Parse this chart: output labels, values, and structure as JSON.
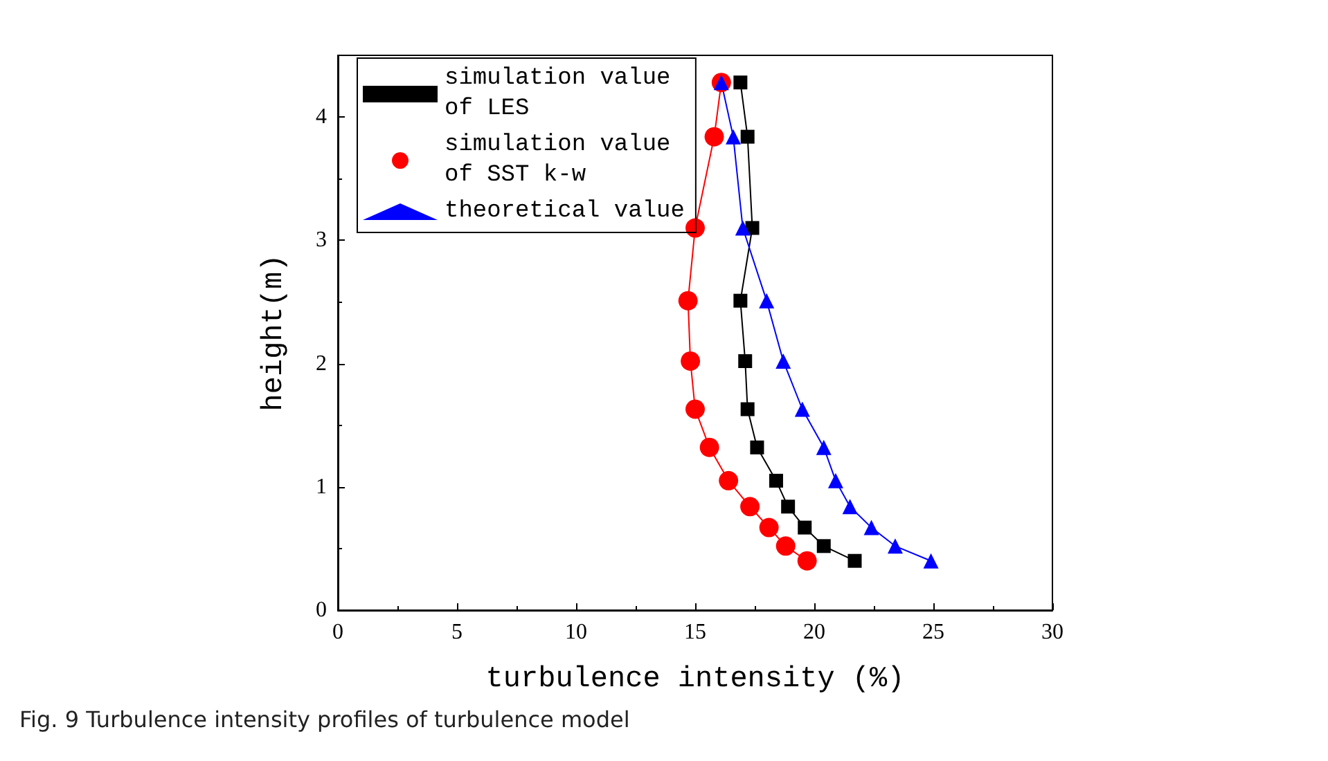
{
  "chart_data": {
    "type": "line",
    "xlabel": "turbulence intensity (%)",
    "ylabel": "height(m)",
    "annotations": [
      "Fig. 9 Turbulence intensity profiles of turbulence model"
    ],
    "xlim": [
      0,
      30
    ],
    "xticks": [
      0,
      5,
      10,
      15,
      20,
      25,
      30
    ],
    "ylim": [
      0,
      4.5
    ],
    "yticks": [
      0,
      1,
      2,
      3,
      4
    ],
    "grid": false,
    "legend": "top left",
    "line_style": "solid",
    "series": [
      {
        "name": "simulation value\nof LES",
        "color": "#000000",
        "marker": "square",
        "x": [
          16.9,
          17.2,
          17.4,
          16.9,
          17.1,
          17.2,
          17.6,
          18.4,
          18.9,
          19.6,
          20.4,
          21.7
        ],
        "values": [
          4.28,
          3.84,
          3.1,
          2.51,
          2.02,
          1.63,
          1.32,
          1.05,
          0.84,
          0.67,
          0.52,
          0.4
        ]
      },
      {
        "name": "simulation value\nof SST k-w",
        "color": "#ff0000",
        "marker": "circle",
        "x": [
          16.1,
          15.8,
          15.0,
          14.7,
          14.8,
          15.0,
          15.6,
          16.4,
          17.3,
          18.1,
          18.8,
          19.7
        ],
        "values": [
          4.28,
          3.84,
          3.1,
          2.51,
          2.02,
          1.63,
          1.32,
          1.05,
          0.84,
          0.67,
          0.52,
          0.4
        ]
      },
      {
        "name": "theoretical value",
        "color": "#0000ff",
        "marker": "triangle",
        "x": [
          16.1,
          16.6,
          17.0,
          18.0,
          18.7,
          19.5,
          20.4,
          20.9,
          21.5,
          22.4,
          23.4,
          24.9
        ],
        "values": [
          4.28,
          3.84,
          3.1,
          2.51,
          2.02,
          1.63,
          1.32,
          1.05,
          0.84,
          0.67,
          0.52,
          0.4
        ]
      }
    ]
  }
}
